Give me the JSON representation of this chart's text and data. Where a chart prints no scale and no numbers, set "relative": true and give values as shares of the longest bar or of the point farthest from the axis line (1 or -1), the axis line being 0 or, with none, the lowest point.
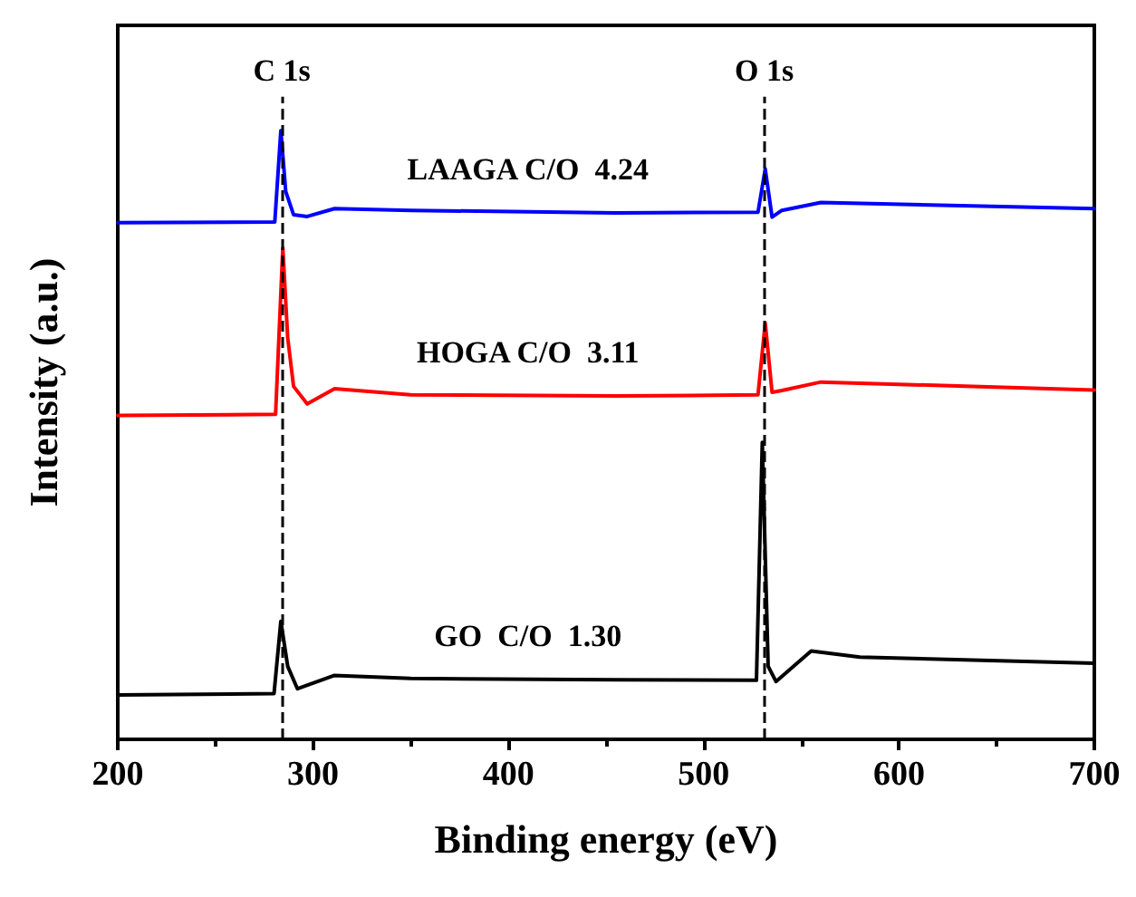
{
  "chart_data": {
    "type": "line",
    "relative": true,
    "xlabel": "Binding energy (eV)",
    "ylabel": "Intensity (a.u.)",
    "xlim": [
      200,
      700
    ],
    "xticks": [
      200,
      300,
      400,
      500,
      600,
      700
    ],
    "grid": false,
    "marker": "none",
    "line_style": "solid",
    "series": [
      {
        "name": "LAAGA C/O  4.24",
        "color": "#0000ff",
        "x": [
          200,
          280.4,
          283.5,
          286,
          290,
          297,
          311,
          350,
          455,
          527.8,
          531.5,
          535,
          540,
          560,
          700
        ],
        "values": [
          0.849,
          0.85,
          1.0,
          0.9,
          0.862,
          0.859,
          0.872,
          0.869,
          0.865,
          0.866,
          0.937,
          0.858,
          0.869,
          0.882,
          0.872
        ]
      },
      {
        "name": "HOGA C/O  3.11",
        "color": "#ff0000",
        "x": [
          200,
          280.8,
          284.5,
          287,
          290,
          297,
          311,
          350,
          455,
          527.8,
          531.5,
          535,
          540,
          560,
          700
        ],
        "values": [
          0.532,
          0.534,
          0.807,
          0.66,
          0.58,
          0.551,
          0.576,
          0.566,
          0.564,
          0.566,
          0.684,
          0.57,
          0.573,
          0.587,
          0.574
        ]
      },
      {
        "name": "GO  C/O  1.30",
        "color": "#000000",
        "x": [
          200,
          280,
          283.5,
          287,
          292,
          311,
          350,
          455,
          527,
          530,
          533,
          537,
          555,
          580,
          700
        ],
        "values": [
          0.073,
          0.075,
          0.194,
          0.12,
          0.083,
          0.105,
          0.1,
          0.098,
          0.097,
          0.488,
          0.12,
          0.095,
          0.145,
          0.135,
          0.125
        ]
      }
    ],
    "ref_lines": [
      {
        "axis": "x",
        "value": 284,
        "label": "C 1s",
        "color": "#000000",
        "line_style": "dashed"
      },
      {
        "axis": "x",
        "value": 531,
        "label": "O 1s",
        "color": "#000000",
        "line_style": "dashed"
      }
    ]
  }
}
